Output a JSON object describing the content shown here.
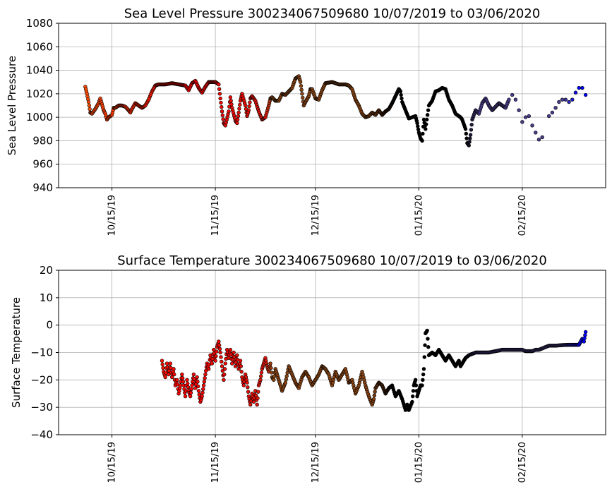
{
  "chart_data": [
    {
      "type": "scatter",
      "title": "Sea Level Pressure 300234067509680  10/07/2019 to 03/06/2020",
      "ylabel": "Sea Level Pressure",
      "xlabel": "",
      "ylim": [
        940,
        1080
      ],
      "yticks": [
        940,
        960,
        980,
        1000,
        1020,
        1040,
        1060,
        1080
      ],
      "xlim": [
        -16,
        148
      ],
      "xticks": [
        {
          "day": 0,
          "label": "10/15/19"
        },
        {
          "day": 31,
          "label": "11/15/19"
        },
        {
          "day": 61,
          "label": "12/15/19"
        },
        {
          "day": 92,
          "label": "01/15/20"
        },
        {
          "day": 123,
          "label": "02/15/20"
        }
      ],
      "grid": true,
      "points": [
        [
          -8,
          1026
        ],
        [
          -7.5,
          1020
        ],
        [
          -7,
          1013
        ],
        [
          -6.5,
          1004
        ],
        [
          -6,
          1003
        ],
        [
          -5,
          1007
        ],
        [
          -4,
          1012
        ],
        [
          -3.5,
          1016
        ],
        [
          -3,
          1011
        ],
        [
          -2.5,
          1006
        ],
        [
          -2,
          1003
        ],
        [
          -1.5,
          998
        ],
        [
          -1,
          1000
        ],
        [
          0,
          1002
        ],
        [
          0.5,
          1008
        ],
        [
          1,
          1008
        ],
        [
          2,
          1010
        ],
        [
          3,
          1010
        ],
        [
          4,
          1009
        ],
        [
          5,
          1006
        ],
        [
          5.5,
          1004
        ],
        [
          6,
          1007
        ],
        [
          7,
          1012
        ],
        [
          8,
          1010
        ],
        [
          9,
          1008
        ],
        [
          10,
          1010
        ],
        [
          11,
          1015
        ],
        [
          12,
          1022
        ],
        [
          13,
          1027
        ],
        [
          14,
          1028
        ],
        [
          16,
          1028
        ],
        [
          18,
          1029
        ],
        [
          20,
          1028
        ],
        [
          22,
          1027
        ],
        [
          23,
          1023
        ],
        [
          24,
          1029
        ],
        [
          25,
          1031
        ],
        [
          26,
          1025
        ],
        [
          27,
          1021
        ],
        [
          28,
          1026
        ],
        [
          29,
          1030
        ],
        [
          30,
          1030
        ],
        [
          31,
          1030
        ],
        [
          32,
          1028
        ],
        [
          32.5,
          1016
        ],
        [
          33,
          1005
        ],
        [
          33.5,
          995
        ],
        [
          34,
          993
        ],
        [
          35,
          1005
        ],
        [
          35.5,
          1017
        ],
        [
          36,
          1008
        ],
        [
          37,
          997
        ],
        [
          37.5,
          995
        ],
        [
          38,
          1004
        ],
        [
          38.5,
          1014
        ],
        [
          39,
          1020
        ],
        [
          40,
          1010
        ],
        [
          40.5,
          1001
        ],
        [
          41,
          1006
        ],
        [
          41.5,
          1016
        ],
        [
          42,
          1018
        ],
        [
          43,
          1014
        ],
        [
          44,
          1005
        ],
        [
          45,
          998
        ],
        [
          46,
          1000
        ],
        [
          47,
          1010
        ],
        [
          47.5,
          1016
        ],
        [
          48,
          1017
        ],
        [
          49,
          1014
        ],
        [
          50,
          1014
        ],
        [
          51,
          1020
        ],
        [
          52,
          1019
        ],
        [
          53,
          1022
        ],
        [
          54,
          1025
        ],
        [
          55,
          1033
        ],
        [
          56,
          1035
        ],
        [
          56.5,
          1030
        ],
        [
          57,
          1020
        ],
        [
          57.5,
          1010
        ],
        [
          58,
          1013
        ],
        [
          59,
          1018
        ],
        [
          59.5,
          1024
        ],
        [
          60,
          1024
        ],
        [
          61,
          1016
        ],
        [
          62,
          1015
        ],
        [
          63,
          1023
        ],
        [
          64,
          1029
        ],
        [
          66,
          1030
        ],
        [
          68,
          1028
        ],
        [
          70,
          1028
        ],
        [
          71,
          1027
        ],
        [
          72,
          1024
        ],
        [
          73,
          1015
        ],
        [
          74,
          1010
        ],
        [
          75,
          1003
        ],
        [
          76,
          1000
        ],
        [
          77,
          1001
        ],
        [
          78,
          1004
        ],
        [
          79,
          1002
        ],
        [
          80,
          1006
        ],
        [
          81,
          1002
        ],
        [
          82,
          1005
        ],
        [
          83,
          1007
        ],
        [
          84,
          1012
        ],
        [
          85,
          1018
        ],
        [
          86,
          1024
        ],
        [
          86.5,
          1022
        ],
        [
          87,
          1013
        ],
        [
          88,
          1006
        ],
        [
          89,
          999
        ],
        [
          90,
          1000
        ],
        [
          91,
          1001
        ],
        [
          91.5,
          995
        ],
        [
          92,
          987
        ],
        [
          92.5,
          982
        ],
        [
          93,
          980
        ],
        [
          93.5,
          998
        ],
        [
          94,
          990
        ],
        [
          95,
          1010
        ],
        [
          96,
          1014
        ],
        [
          97,
          1022
        ],
        [
          98,
          1023
        ],
        [
          99,
          1025
        ],
        [
          100,
          1024
        ],
        [
          101,
          1015
        ],
        [
          102,
          1010
        ],
        [
          103,
          1003
        ],
        [
          104,
          1001
        ],
        [
          104.5,
          1000
        ],
        [
          105,
          998
        ],
        [
          106,
          990
        ],
        [
          106.5,
          978
        ],
        [
          107,
          976
        ],
        [
          107.5,
          985
        ],
        [
          108,
          998
        ],
        [
          109,
          1006
        ],
        [
          110,
          1003
        ],
        [
          111,
          1012
        ],
        [
          112,
          1016
        ],
        [
          113,
          1010
        ],
        [
          114,
          1006
        ],
        [
          115,
          1009
        ],
        [
          116,
          1012
        ],
        [
          117,
          1010
        ],
        [
          118,
          1008
        ],
        [
          119,
          1015
        ],
        [
          120,
          1019
        ],
        [
          121,
          1015
        ],
        [
          122,
          1006
        ],
        [
          123,
          996
        ],
        [
          124,
          1000
        ],
        [
          125,
          1001
        ],
        [
          126,
          993
        ],
        [
          127,
          987
        ],
        [
          128,
          981
        ],
        [
          129,
          983
        ],
        [
          131,
          1001
        ],
        [
          132,
          1004
        ],
        [
          133,
          1008
        ],
        [
          134,
          1013
        ],
        [
          135,
          1015
        ],
        [
          136,
          1015
        ],
        [
          137,
          1013
        ],
        [
          138,
          1015
        ],
        [
          139,
          1021
        ],
        [
          140,
          1025
        ],
        [
          141,
          1025
        ],
        [
          142,
          1019
        ]
      ]
    },
    {
      "type": "scatter",
      "title": "Surface Temperature 300234067509680  10/07/2019 to 03/06/2020",
      "ylabel": "Surface Temperature",
      "xlabel": "",
      "ylim": [
        -40,
        20
      ],
      "yticks": [
        -40,
        -30,
        -20,
        -10,
        0,
        10,
        20
      ],
      "xlim": [
        -16,
        148
      ],
      "xticks": [
        {
          "day": 0,
          "label": "10/15/19"
        },
        {
          "day": 31,
          "label": "11/15/19"
        },
        {
          "day": 61,
          "label": "12/15/19"
        },
        {
          "day": 92,
          "label": "01/15/20"
        },
        {
          "day": 123,
          "label": "02/15/20"
        }
      ],
      "grid": true,
      "points": [
        [
          15,
          -13
        ],
        [
          15.5,
          -17
        ],
        [
          16,
          -19
        ],
        [
          16.5,
          -14
        ],
        [
          17,
          -18
        ],
        [
          17.5,
          -14
        ],
        [
          18,
          -19
        ],
        [
          18.5,
          -16
        ],
        [
          19,
          -22
        ],
        [
          19.5,
          -20
        ],
        [
          20,
          -25
        ],
        [
          20.5,
          -22
        ],
        [
          21,
          -18
        ],
        [
          21.5,
          -22
        ],
        [
          22,
          -26
        ],
        [
          22.5,
          -20
        ],
        [
          23,
          -24
        ],
        [
          23.5,
          -26
        ],
        [
          24,
          -22
        ],
        [
          24.5,
          -18
        ],
        [
          25,
          -23
        ],
        [
          25.5,
          -19
        ],
        [
          26,
          -24
        ],
        [
          26.5,
          -28
        ],
        [
          27,
          -26
        ],
        [
          27.5,
          -22
        ],
        [
          28,
          -18
        ],
        [
          28.5,
          -14
        ],
        [
          29,
          -16
        ],
        [
          29.5,
          -11
        ],
        [
          30,
          -14
        ],
        [
          30.5,
          -9
        ],
        [
          31,
          -13
        ],
        [
          31.5,
          -8
        ],
        [
          32,
          -6
        ],
        [
          32.5,
          -10
        ],
        [
          33,
          -15
        ],
        [
          33.5,
          -20
        ],
        [
          34,
          -14
        ],
        [
          34.5,
          -9
        ],
        [
          35,
          -12
        ],
        [
          35.5,
          -9
        ],
        [
          36,
          -14
        ],
        [
          36.5,
          -10
        ],
        [
          37,
          -15
        ],
        [
          37.5,
          -11
        ],
        [
          38,
          -16
        ],
        [
          38.5,
          -13
        ],
        [
          39,
          -19
        ],
        [
          39.5,
          -22
        ],
        [
          40,
          -18
        ],
        [
          40.5,
          -21
        ],
        [
          41,
          -26
        ],
        [
          41.5,
          -29
        ],
        [
          42,
          -25
        ],
        [
          42.5,
          -28
        ],
        [
          43,
          -24
        ],
        [
          43.5,
          -29
        ],
        [
          44,
          -22
        ],
        [
          44.5,
          -20
        ],
        [
          45,
          -16
        ],
        [
          45.5,
          -14
        ],
        [
          46,
          -12
        ],
        [
          46.5,
          -15
        ],
        [
          47,
          -17
        ],
        [
          47.5,
          -14
        ],
        [
          48,
          -19
        ],
        [
          48.5,
          -20
        ],
        [
          49,
          -16
        ],
        [
          49.5,
          -18
        ],
        [
          50,
          -20
        ],
        [
          51,
          -24
        ],
        [
          52,
          -21
        ],
        [
          53,
          -15
        ],
        [
          54,
          -18
        ],
        [
          55,
          -21
        ],
        [
          56,
          -23
        ],
        [
          57,
          -19
        ],
        [
          58,
          -17
        ],
        [
          59,
          -19
        ],
        [
          60,
          -22
        ],
        [
          61,
          -20
        ],
        [
          62,
          -18
        ],
        [
          63,
          -15
        ],
        [
          64,
          -16
        ],
        [
          65,
          -18
        ],
        [
          66,
          -22
        ],
        [
          67,
          -17
        ],
        [
          68,
          -20
        ],
        [
          69,
          -18
        ],
        [
          70,
          -16
        ],
        [
          71,
          -21
        ],
        [
          72,
          -20
        ],
        [
          73,
          -25
        ],
        [
          74,
          -22
        ],
        [
          75,
          -17
        ],
        [
          76,
          -22
        ],
        [
          77,
          -26
        ],
        [
          78,
          -29
        ],
        [
          78.5,
          -27
        ],
        [
          79,
          -23
        ],
        [
          80,
          -21
        ],
        [
          81,
          -22
        ],
        [
          82,
          -25
        ],
        [
          83,
          -23
        ],
        [
          84,
          -22
        ],
        [
          85,
          -26
        ],
        [
          86,
          -24
        ],
        [
          87,
          -27
        ],
        [
          88,
          -31
        ],
        [
          88.5,
          -29
        ],
        [
          89,
          -31
        ],
        [
          90,
          -28
        ],
        [
          90.5,
          -22
        ],
        [
          91,
          -20
        ],
        [
          91.5,
          -26
        ],
        [
          92,
          -24
        ],
        [
          92.5,
          -22
        ],
        [
          93,
          -22
        ],
        [
          93.5,
          -16
        ],
        [
          94,
          -3
        ],
        [
          94.5,
          -2
        ],
        [
          95,
          -11
        ],
        [
          96,
          -10
        ],
        [
          97,
          -11
        ],
        [
          98,
          -9
        ],
        [
          99,
          -11
        ],
        [
          100,
          -13
        ],
        [
          101,
          -11
        ],
        [
          102,
          -13
        ],
        [
          103,
          -15
        ],
        [
          104,
          -13
        ],
        [
          104.5,
          -15
        ],
        [
          105,
          -14
        ],
        [
          106,
          -12
        ],
        [
          107,
          -11
        ],
        [
          109,
          -10
        ],
        [
          111,
          -10
        ],
        [
          113,
          -10
        ],
        [
          115,
          -9.5
        ],
        [
          117,
          -9
        ],
        [
          119,
          -9
        ],
        [
          121,
          -9
        ],
        [
          123,
          -9
        ],
        [
          124,
          -9.5
        ],
        [
          125,
          -9.5
        ],
        [
          126,
          -9.5
        ],
        [
          127,
          -9
        ],
        [
          128,
          -9
        ],
        [
          129,
          -8.5
        ],
        [
          131,
          -7.5
        ],
        [
          133,
          -7.5
        ],
        [
          135,
          -7.3
        ],
        [
          137,
          -7.2
        ],
        [
          139,
          -7.2
        ],
        [
          140,
          -7.2
        ],
        [
          141,
          -5
        ],
        [
          141.5,
          -6
        ],
        [
          142,
          -2.5
        ]
      ]
    }
  ]
}
